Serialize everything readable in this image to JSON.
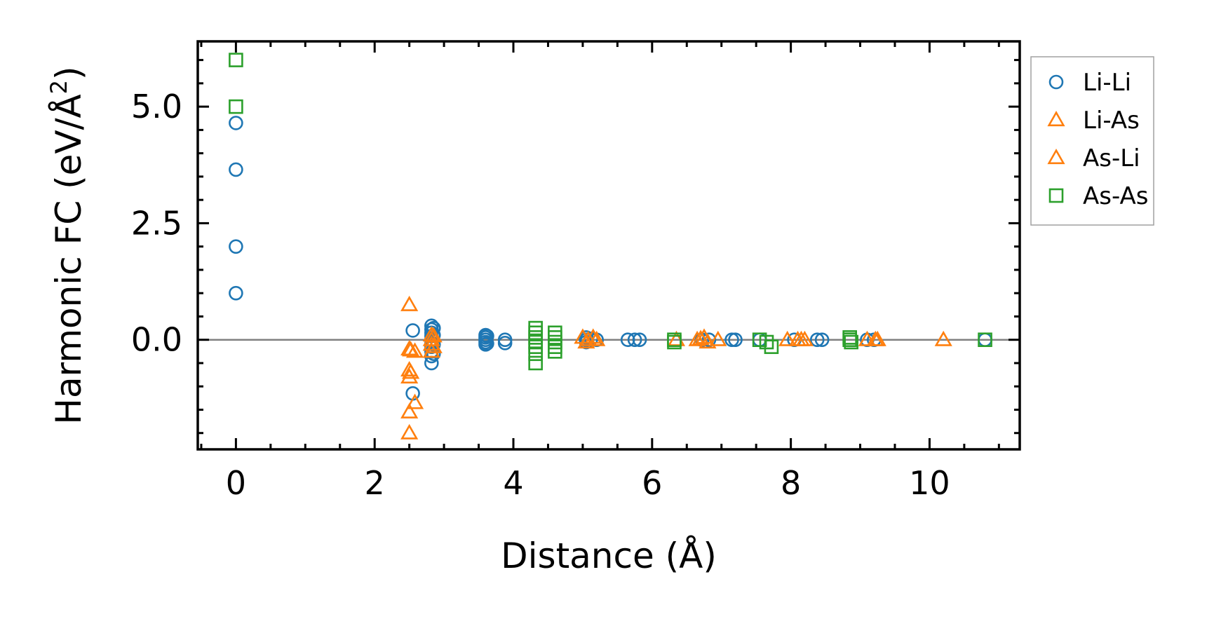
{
  "chart_data": {
    "type": "scatter",
    "xlabel": "Distance (Å)",
    "ylabel": "Harmonic FC (eV/Å²)",
    "ylabel_main": "Harmonic FC (eV/Å",
    "ylabel_sup": "2",
    "ylabel_close": ")",
    "xlim": [
      -0.55,
      11.3
    ],
    "ylim": [
      -2.35,
      6.4
    ],
    "xticks": [
      0,
      2,
      4,
      6,
      8,
      10
    ],
    "xtick_labels": [
      "0",
      "2",
      "4",
      "6",
      "8",
      "10"
    ],
    "yticks": [
      0.0,
      2.5,
      5.0
    ],
    "ytick_labels": [
      "0.0",
      "2.5",
      "5.0"
    ],
    "zero_line": 0,
    "grid": false,
    "legend_position": "outside-right",
    "series": [
      {
        "name": "Li-Li",
        "marker": "circle",
        "color": "#1f77b4",
        "points": [
          [
            0,
            4.65
          ],
          [
            0,
            3.65
          ],
          [
            0,
            2.0
          ],
          [
            0,
            1.0
          ],
          [
            2.55,
            0.2
          ],
          [
            2.55,
            -1.15
          ],
          [
            2.82,
            0.3
          ],
          [
            2.82,
            0.22
          ],
          [
            2.82,
            0.15
          ],
          [
            2.82,
            0.08
          ],
          [
            2.82,
            0.0
          ],
          [
            2.82,
            -0.08
          ],
          [
            2.82,
            -0.15
          ],
          [
            2.82,
            -0.25
          ],
          [
            2.82,
            -0.35
          ],
          [
            2.82,
            -0.5
          ],
          [
            2.85,
            0.25
          ],
          [
            2.85,
            0.1
          ],
          [
            2.85,
            -0.1
          ],
          [
            2.85,
            -0.3
          ],
          [
            3.6,
            0.1
          ],
          [
            3.6,
            0.05
          ],
          [
            3.6,
            0.0
          ],
          [
            3.6,
            -0.05
          ],
          [
            3.6,
            -0.1
          ],
          [
            3.62,
            0.08
          ],
          [
            3.62,
            -0.08
          ],
          [
            3.88,
            0.0
          ],
          [
            3.88,
            -0.07
          ],
          [
            5.05,
            0.05
          ],
          [
            5.05,
            0.0
          ],
          [
            5.05,
            -0.05
          ],
          [
            5.12,
            0.02
          ],
          [
            5.2,
            0.0
          ],
          [
            5.65,
            0.0
          ],
          [
            5.75,
            0.0
          ],
          [
            5.82,
            0.0
          ],
          [
            6.72,
            0.0
          ],
          [
            6.82,
            0.0
          ],
          [
            7.15,
            0.0
          ],
          [
            7.2,
            0.0
          ],
          [
            7.55,
            0.0
          ],
          [
            8.05,
            0.0
          ],
          [
            8.38,
            0.0
          ],
          [
            8.45,
            0.0
          ],
          [
            9.1,
            0.0
          ],
          [
            9.2,
            0.0
          ],
          [
            10.8,
            0.0
          ]
        ]
      },
      {
        "name": "Li-As",
        "marker": "triangle",
        "color": "#ff7f0e",
        "points": [
          [
            2.5,
            0.75
          ],
          [
            2.5,
            -0.2
          ],
          [
            2.5,
            -0.65
          ],
          [
            2.5,
            -0.8
          ],
          [
            2.5,
            -1.55
          ],
          [
            2.5,
            -2.0
          ],
          [
            2.58,
            -0.25
          ],
          [
            2.58,
            -1.35
          ],
          [
            2.82,
            0.1
          ],
          [
            2.82,
            0.0
          ],
          [
            2.82,
            -0.1
          ],
          [
            2.82,
            -0.25
          ],
          [
            5.0,
            0.05
          ],
          [
            5.05,
            -0.05
          ],
          [
            5.15,
            0.05
          ],
          [
            5.2,
            0.0
          ],
          [
            6.35,
            0.0
          ],
          [
            6.65,
            0.0
          ],
          [
            6.75,
            0.05
          ],
          [
            6.8,
            -0.05
          ],
          [
            6.95,
            0.0
          ],
          [
            7.95,
            0.0
          ],
          [
            8.1,
            0.0
          ],
          [
            8.2,
            0.0
          ],
          [
            9.1,
            0.0
          ],
          [
            9.25,
            0.0
          ],
          [
            10.2,
            0.0
          ]
        ]
      },
      {
        "name": "As-Li",
        "marker": "triangle",
        "color": "#ff7f0e",
        "points": [
          [
            2.52,
            -0.22
          ],
          [
            2.52,
            -0.7
          ],
          [
            2.85,
            0.08
          ],
          [
            2.85,
            -0.15
          ],
          [
            5.08,
            0.0
          ],
          [
            6.7,
            0.02
          ],
          [
            8.15,
            0.0
          ],
          [
            9.22,
            0.0
          ]
        ]
      },
      {
        "name": "As-As",
        "marker": "square",
        "color": "#2ca02c",
        "points": [
          [
            0,
            6.0
          ],
          [
            0,
            5.0
          ],
          [
            4.32,
            0.25
          ],
          [
            4.32,
            0.15
          ],
          [
            4.32,
            0.05
          ],
          [
            4.32,
            -0.05
          ],
          [
            4.32,
            -0.15
          ],
          [
            4.32,
            -0.3
          ],
          [
            4.32,
            -0.5
          ],
          [
            4.6,
            0.15
          ],
          [
            4.6,
            0.05
          ],
          [
            4.6,
            -0.05
          ],
          [
            4.6,
            -0.15
          ],
          [
            4.6,
            -0.25
          ],
          [
            6.32,
            0.0
          ],
          [
            6.32,
            -0.05
          ],
          [
            7.55,
            0.0
          ],
          [
            7.65,
            -0.05
          ],
          [
            7.72,
            -0.15
          ],
          [
            8.85,
            0.0
          ],
          [
            8.85,
            0.05
          ],
          [
            8.87,
            -0.05
          ],
          [
            10.8,
            0.0
          ]
        ]
      }
    ]
  }
}
